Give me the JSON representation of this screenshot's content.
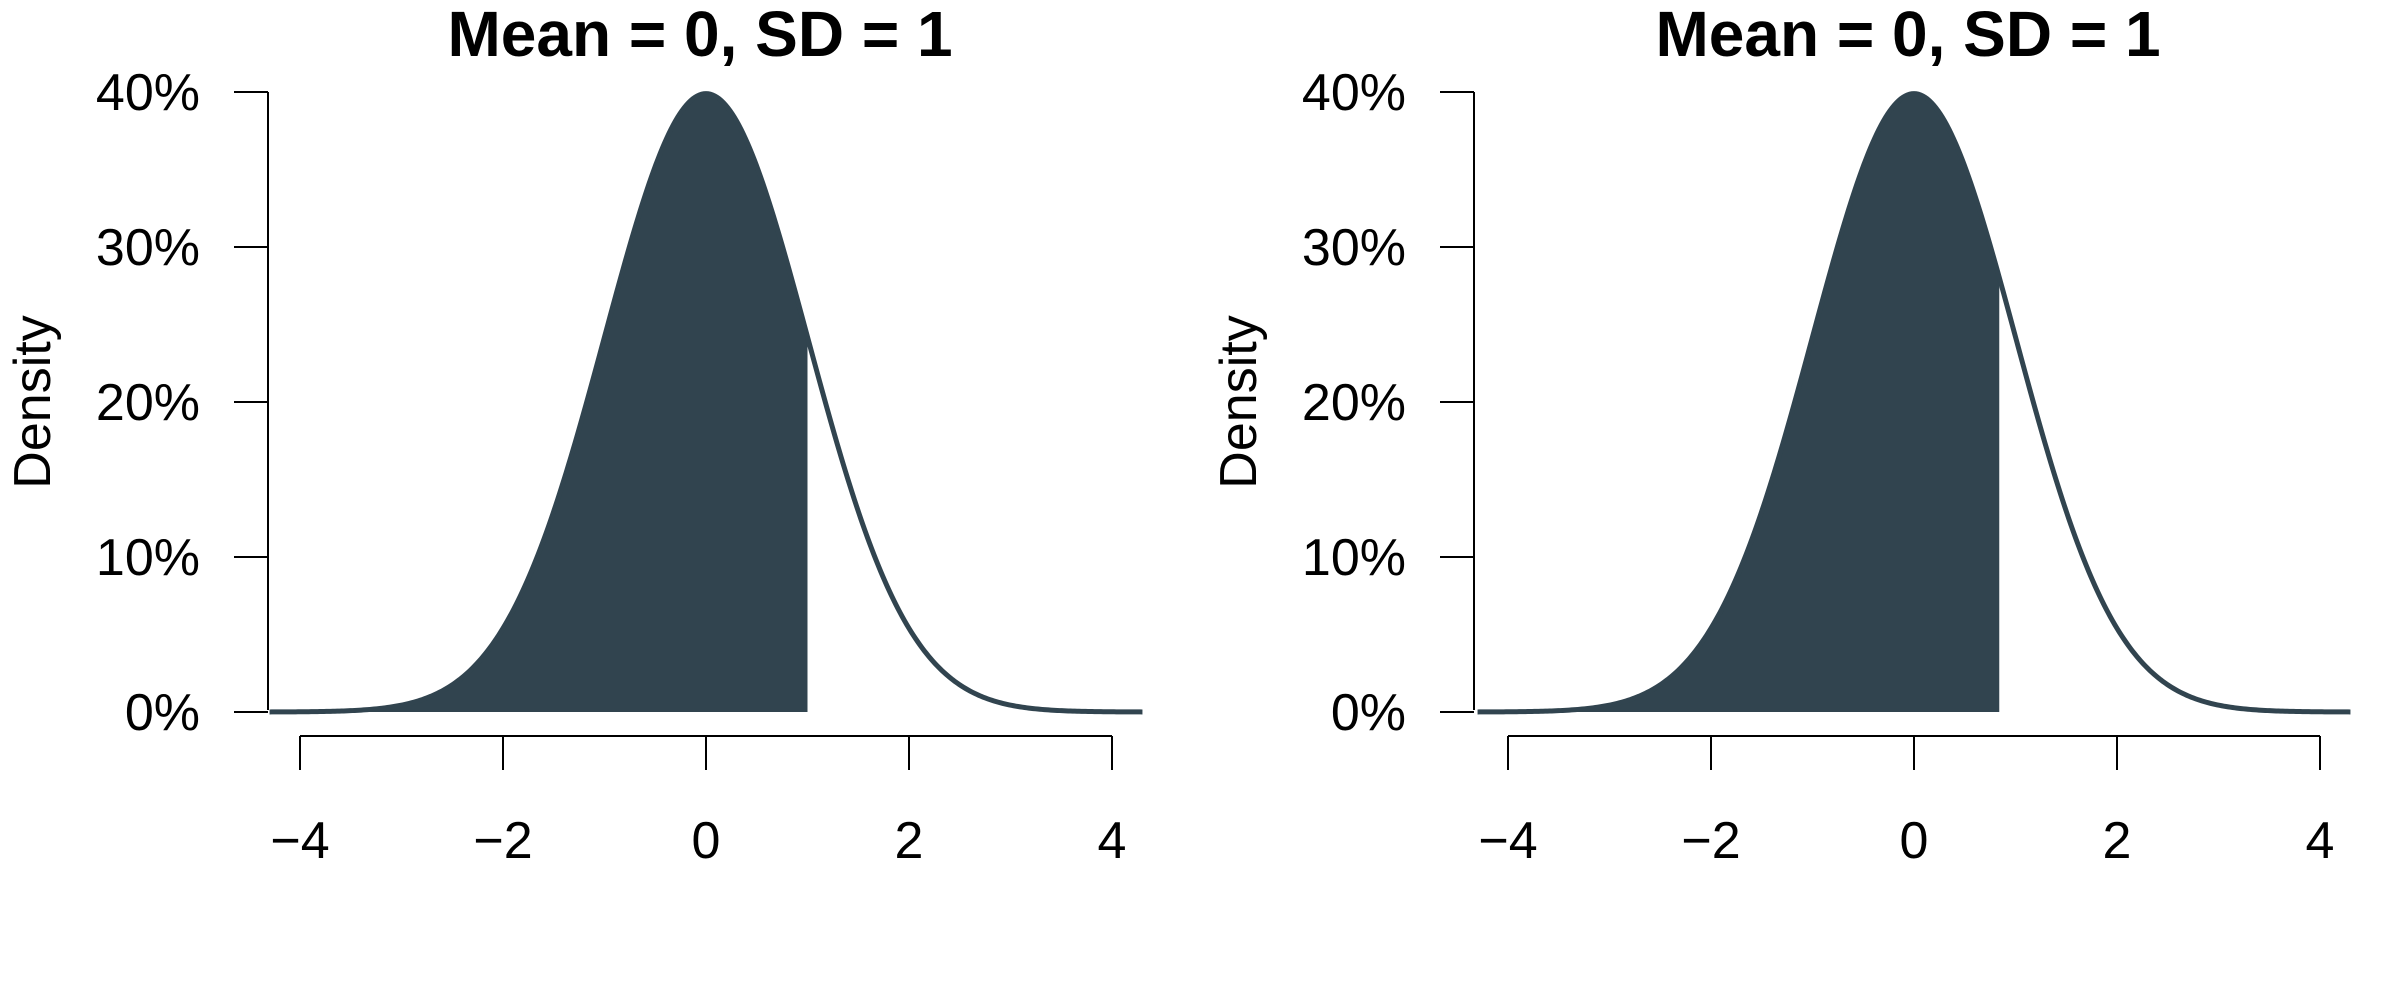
{
  "colors": {
    "curve": "#31444f",
    "shade": "#31444f",
    "axis": "#000000",
    "background": "#ffffff"
  },
  "chart_data": [
    {
      "type": "area",
      "title": "Mean = 0, SD = 1",
      "ylabel": "Density",
      "xlabel": "",
      "distribution": {
        "family": "normal",
        "mean": 0,
        "sd": 1
      },
      "xlim": [
        -4.3,
        4.3
      ],
      "ylim": [
        0,
        0.4
      ],
      "x_ticks": [
        -4,
        -2,
        0,
        2,
        4
      ],
      "x_tick_labels": [
        "−4",
        "−2",
        "0",
        "2",
        "4"
      ],
      "y_ticks": [
        0,
        0.1,
        0.2,
        0.3,
        0.4
      ],
      "y_tick_labels": [
        "0%",
        "10%",
        "20%",
        "30%",
        "40%"
      ],
      "shaded_region": {
        "from": -4.3,
        "to": 1.0
      },
      "grid": false,
      "legend": "none"
    },
    {
      "type": "area",
      "title": "Mean = 0, SD = 1",
      "ylabel": "Density",
      "xlabel": "",
      "distribution": {
        "family": "normal",
        "mean": 0,
        "sd": 1
      },
      "xlim": [
        -4.3,
        4.3
      ],
      "ylim": [
        0,
        0.4
      ],
      "x_ticks": [
        -4,
        -2,
        0,
        2,
        4
      ],
      "x_tick_labels": [
        "−4",
        "−2",
        "0",
        "2",
        "4"
      ],
      "y_ticks": [
        0,
        0.1,
        0.2,
        0.3,
        0.4
      ],
      "y_tick_labels": [
        "0%",
        "10%",
        "20%",
        "30%",
        "40%"
      ],
      "shaded_region": {
        "from": -4.3,
        "to": 0.84
      },
      "grid": false,
      "legend": "none"
    }
  ]
}
